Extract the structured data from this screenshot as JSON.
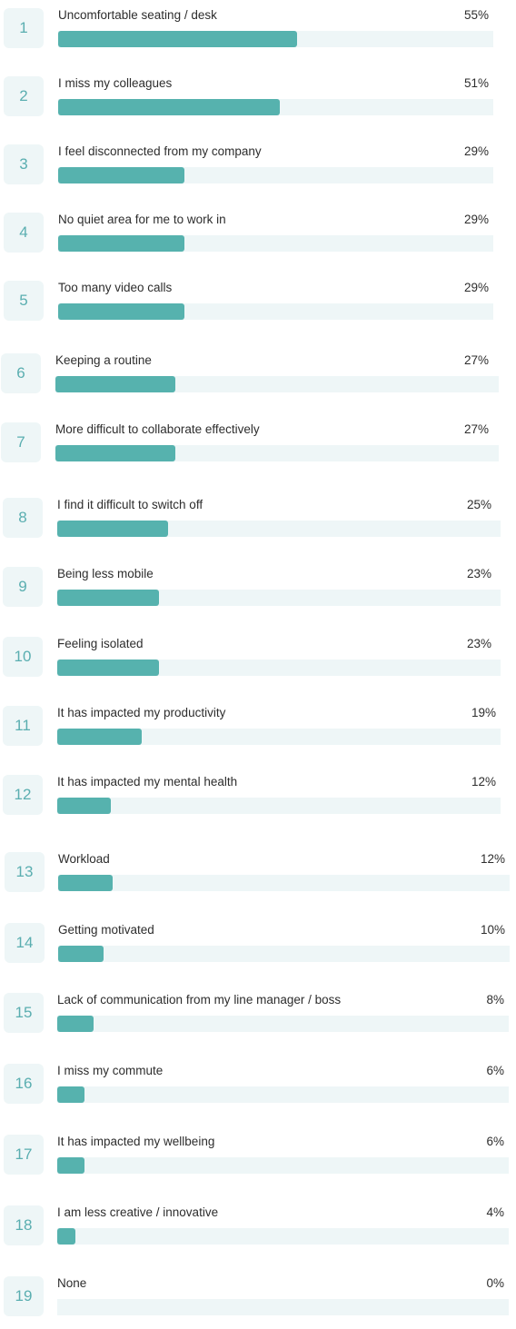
{
  "colors": {
    "accent": "#56b2ae",
    "track": "#eef6f7",
    "rank_text": "#5aaeb0"
  },
  "chart_data": {
    "type": "bar",
    "orientation": "horizontal",
    "categories": [
      "Uncomfortable seating / desk",
      "I miss my colleagues",
      "I feel disconnected from my company",
      "No quiet area for me to work in",
      "Too many video calls",
      "Keeping a routine",
      "More difficult to collaborate effectively",
      "I find it difficult to switch off",
      "Being less mobile",
      "Feeling isolated",
      "It has impacted my productivity",
      "It has impacted my mental health",
      "Workload",
      "Getting motivated",
      "Lack of communication from my line manager / boss",
      "I miss my commute",
      "It has impacted my wellbeing",
      "I am less creative / innovative",
      "None"
    ],
    "ranks": [
      "1",
      "2",
      "3",
      "4",
      "5",
      "6",
      "7",
      "8",
      "9",
      "10",
      "11",
      "12",
      "13",
      "14",
      "15",
      "16",
      "17",
      "18",
      "19"
    ],
    "values": [
      55,
      51,
      29,
      29,
      29,
      27,
      27,
      25,
      23,
      23,
      19,
      12,
      12,
      10,
      8,
      6,
      6,
      4,
      0
    ],
    "value_labels": [
      "55%",
      "51%",
      "29%",
      "29%",
      "29%",
      "27%",
      "27%",
      "25%",
      "23%",
      "23%",
      "19%",
      "12%",
      "12%",
      "10%",
      "8%",
      "6%",
      "6%",
      "4%",
      "0%"
    ],
    "xlim": [
      0,
      100
    ]
  }
}
